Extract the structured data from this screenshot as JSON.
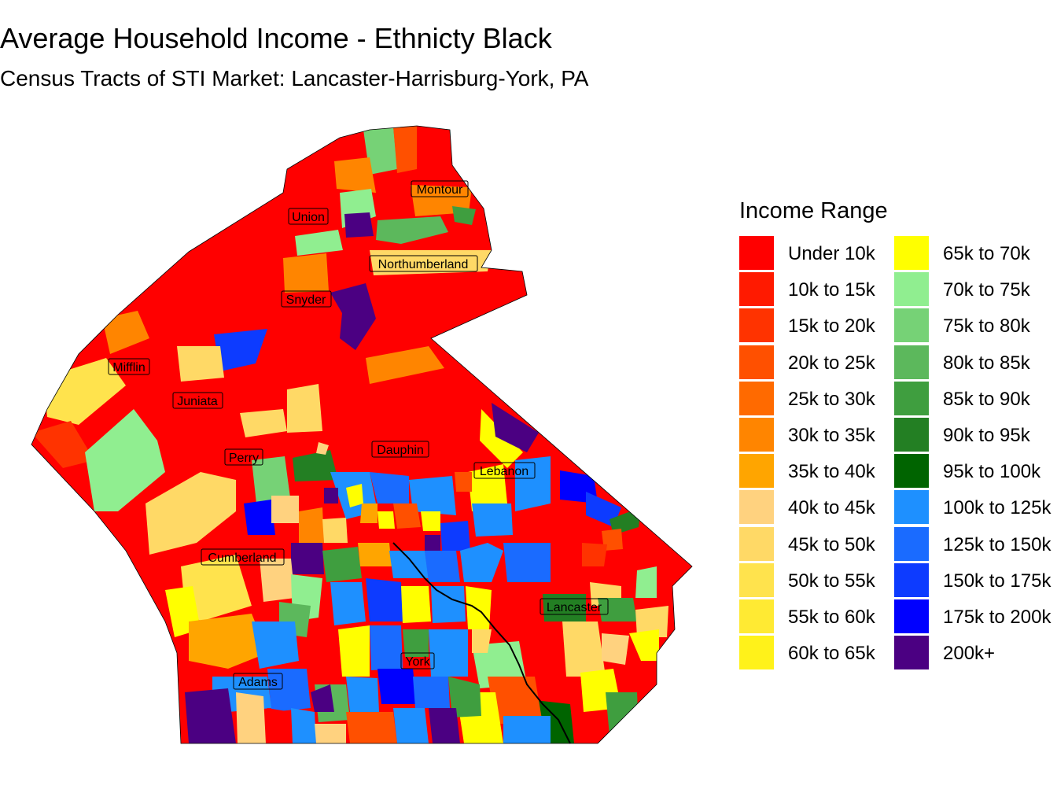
{
  "title": "Average Household Income - Ethnicty Black",
  "subtitle": "Census Tracts of STI Market: Lancaster-Harrisburg-York, PA",
  "legend": {
    "title": "Income Range",
    "items": [
      {
        "label": "Under 10k",
        "color": "#FF0000"
      },
      {
        "label": "10k to 15k",
        "color": "#FF1A00"
      },
      {
        "label": "15k to 20k",
        "color": "#FF3300"
      },
      {
        "label": "20k to 25k",
        "color": "#FF5000"
      },
      {
        "label": "25k to 30k",
        "color": "#FF6A00"
      },
      {
        "label": "30k to 35k",
        "color": "#FF8500"
      },
      {
        "label": "35k to 40k",
        "color": "#FFA500"
      },
      {
        "label": "40k to 45k",
        "color": "#FFD27F"
      },
      {
        "label": "45k to 50k",
        "color": "#FFD966"
      },
      {
        "label": "50k to 55k",
        "color": "#FFE34D"
      },
      {
        "label": "55k to 60k",
        "color": "#FFEA33"
      },
      {
        "label": "60k to 65k",
        "color": "#FFF21A"
      },
      {
        "label": "65k to 70k",
        "color": "#FFFF00"
      },
      {
        "label": "70k to 75k",
        "color": "#90EE90"
      },
      {
        "label": "75k to 80k",
        "color": "#76D276"
      },
      {
        "label": "80k to 85k",
        "color": "#5CB85C"
      },
      {
        "label": "85k to 90k",
        "color": "#3F9E3F"
      },
      {
        "label": "90k to 95k",
        "color": "#237F23"
      },
      {
        "label": "95k to 100k",
        "color": "#006400"
      },
      {
        "label": "100k to 125k",
        "color": "#1E90FF"
      },
      {
        "label": "125k to 150k",
        "color": "#1A6BFF"
      },
      {
        "label": "150k to 175k",
        "color": "#0D3BFF"
      },
      {
        "label": "175k to 200k",
        "color": "#0000FF"
      },
      {
        "label": "200k+",
        "color": "#4B0082"
      }
    ]
  },
  "counties": [
    {
      "name": "Montour"
    },
    {
      "name": "Union"
    },
    {
      "name": "Northumberland"
    },
    {
      "name": "Snyder"
    },
    {
      "name": "Mifflin"
    },
    {
      "name": "Juniata"
    },
    {
      "name": "Dauphin"
    },
    {
      "name": "Perry"
    },
    {
      "name": "Lebanon"
    },
    {
      "name": "Cumberland"
    },
    {
      "name": "Lancaster"
    },
    {
      "name": "York"
    },
    {
      "name": "Adams"
    }
  ]
}
